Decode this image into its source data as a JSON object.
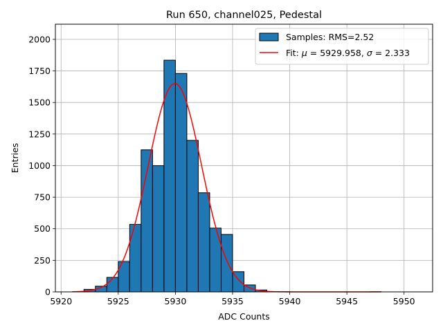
{
  "chart_data": {
    "type": "bar",
    "title": "Run 650, channel025, Pedestal",
    "xlabel": "ADC Counts",
    "ylabel": "Entries",
    "xlim": [
      5919.5,
      5952.5
    ],
    "ylim": [
      0,
      2120
    ],
    "xticks": [
      5920,
      5925,
      5930,
      5935,
      5940,
      5945,
      5950
    ],
    "yticks": [
      0,
      250,
      500,
      750,
      1000,
      1250,
      1500,
      1750,
      2000
    ],
    "grid": true,
    "legend_position": "top-right",
    "bin_width": 1,
    "histogram": {
      "name": "Samples: RMS=2.52",
      "color": "#1f77b4",
      "edge_color": "#000000",
      "bin_starts": [
        5921,
        5922,
        5923,
        5924,
        5925,
        5926,
        5927,
        5928,
        5929,
        5930,
        5931,
        5932,
        5933,
        5934,
        5935,
        5936,
        5937,
        5938,
        5939,
        5940,
        5941,
        5942,
        5943,
        5944,
        5945,
        5946,
        5947
      ],
      "counts": [
        2,
        20,
        45,
        115,
        240,
        535,
        1125,
        1000,
        1835,
        1730,
        1200,
        785,
        505,
        455,
        160,
        55,
        15,
        2,
        1,
        0,
        0,
        0,
        0,
        0,
        0,
        0,
        1
      ]
    },
    "fit": {
      "name_prefix": "Fit: ",
      "mu_symbol": "μ",
      "mu_text": " = 5929.958, ",
      "sigma_symbol": "σ",
      "sigma_text": " = 2.333",
      "color": "#ff0000",
      "mu": 5929.958,
      "sigma": 2.333,
      "amplitude": 1650,
      "x_range": [
        5921,
        5948
      ]
    }
  }
}
